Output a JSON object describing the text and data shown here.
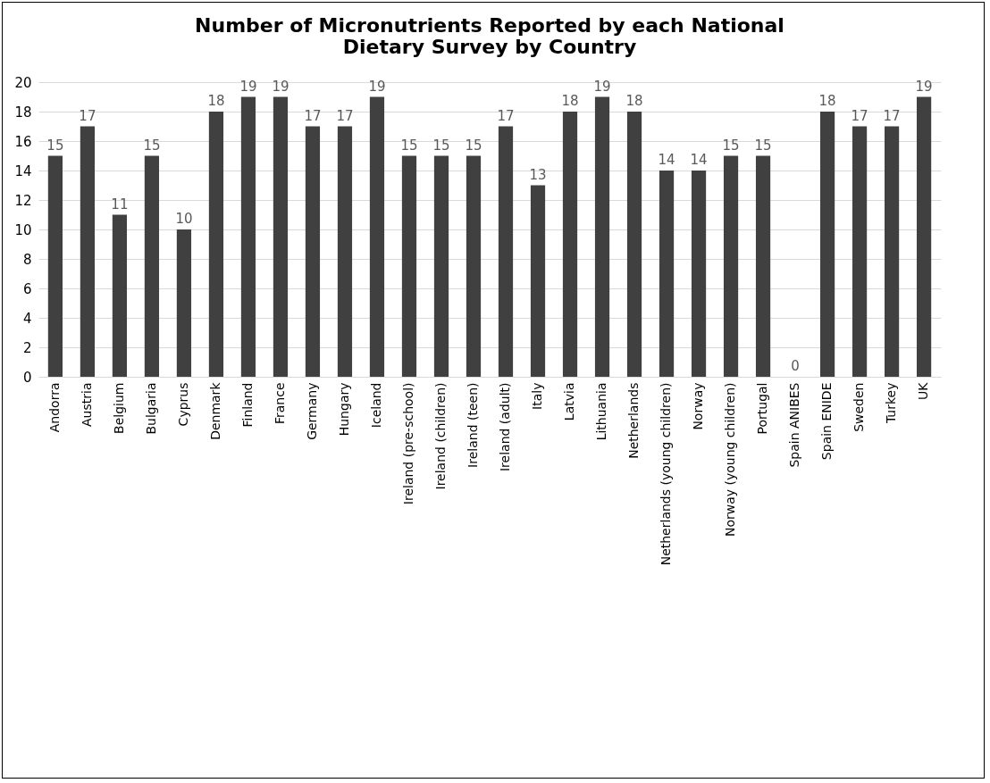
{
  "chart_data": {
    "type": "bar",
    "title": "Number of Micronutrients Reported by each National Dietary Survey by Country",
    "categories": [
      "Andorra",
      "Austria",
      "Belgium",
      "Bulgaria",
      "Cyprus",
      "Denmark",
      "Finland",
      "France",
      "Germany",
      "Hungary",
      "Iceland",
      "Ireland (pre-school)",
      "Ireland (children)",
      "Ireland (teen)",
      "Ireland (adult)",
      "Italy",
      "Latvia",
      "Lithuania",
      "Netherlands",
      "Netherlands (young children)",
      "Norway",
      "Norway (young children)",
      "Portugal",
      "Spain ANIBES",
      "Spain ENIDE",
      "Sweden",
      "Turkey",
      "UK"
    ],
    "values": [
      15,
      17,
      11,
      15,
      10,
      18,
      19,
      19,
      17,
      17,
      19,
      15,
      15,
      15,
      17,
      13,
      18,
      19,
      18,
      14,
      14,
      15,
      15,
      0,
      18,
      17,
      17,
      19
    ],
    "color": "#404040",
    "ylim": [
      0,
      20
    ],
    "yticks": [
      0,
      2,
      4,
      6,
      8,
      10,
      12,
      14,
      16,
      18,
      20
    ],
    "grid": "y",
    "data_labels": true
  }
}
